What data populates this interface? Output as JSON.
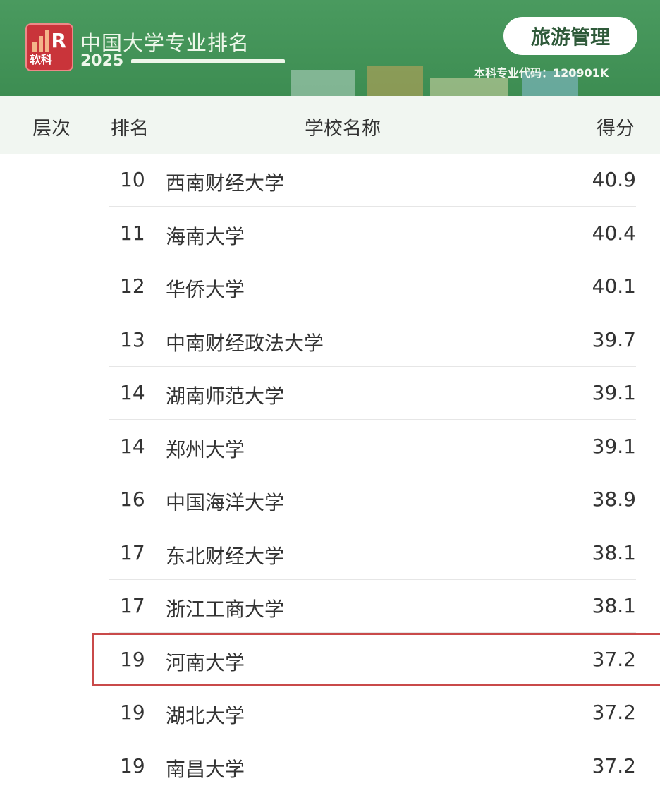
{
  "header": {
    "logo_text": "软科",
    "title": "中国大学专业排名",
    "year": "2025",
    "major": "旅游管理",
    "major_code": "本科专业代码：120901K"
  },
  "columns": {
    "level": "层次",
    "rank": "排名",
    "school": "学校名称",
    "score": "得分"
  },
  "rows": [
    {
      "rank": "10",
      "school": "西南财经大学",
      "score": "40.9"
    },
    {
      "rank": "11",
      "school": "海南大学",
      "score": "40.4"
    },
    {
      "rank": "12",
      "school": "华侨大学",
      "score": "40.1"
    },
    {
      "rank": "13",
      "school": "中南财经政法大学",
      "score": "39.7"
    },
    {
      "rank": "14",
      "school": "湖南师范大学",
      "score": "39.1"
    },
    {
      "rank": "14",
      "school": "郑州大学",
      "score": "39.1"
    },
    {
      "rank": "16",
      "school": "中国海洋大学",
      "score": "38.9"
    },
    {
      "rank": "17",
      "school": "东北财经大学",
      "score": "38.1"
    },
    {
      "rank": "17",
      "school": "浙江工商大学",
      "score": "38.1"
    },
    {
      "rank": "19",
      "school": "河南大学",
      "score": "37.2",
      "highlighted": true
    },
    {
      "rank": "19",
      "school": "湖北大学",
      "score": "37.2"
    },
    {
      "rank": "19",
      "school": "南昌大学",
      "score": "37.2"
    }
  ],
  "colors": {
    "banner": "#3f9155",
    "highlight": "#c94a4a"
  }
}
